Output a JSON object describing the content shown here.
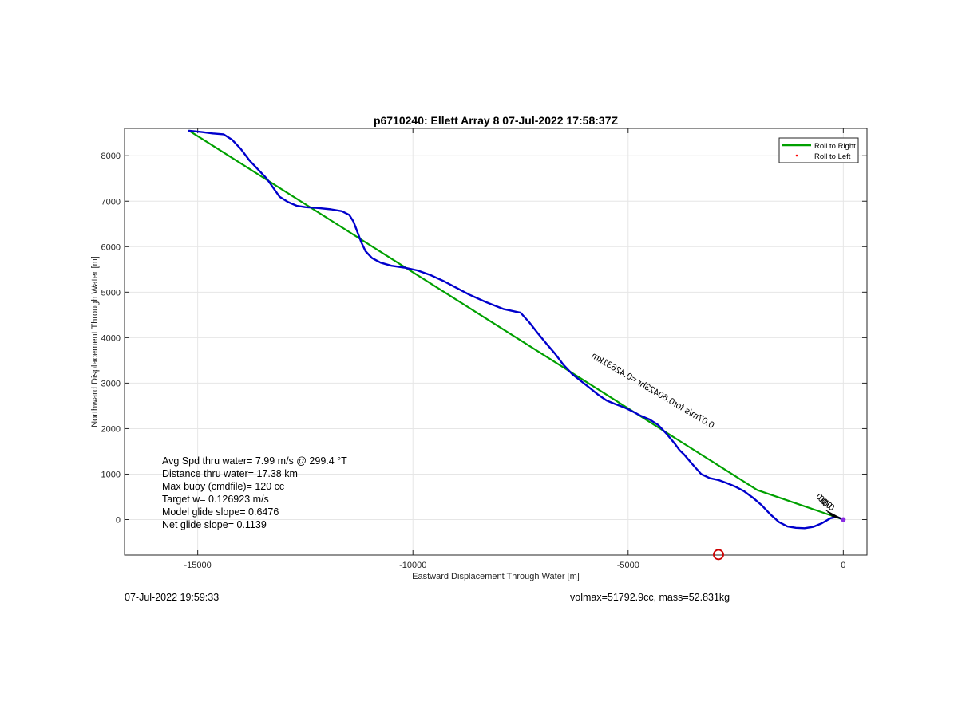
{
  "chart_data": {
    "type": "line",
    "title": "p6710240: Ellett Array 8 07-Jul-2022 17:58:37Z",
    "xlabel": "Eastward Displacement Through Water [m]",
    "ylabel": "Northward Displacement Through Water [m]",
    "xlim": [
      -16700,
      550
    ],
    "ylim": [
      -780,
      8600
    ],
    "xticks": [
      -15000,
      -10000,
      -5000,
      0
    ],
    "yticks": [
      0,
      1000,
      2000,
      3000,
      4000,
      5000,
      6000,
      7000,
      8000
    ],
    "grid": true,
    "legend_position": "top-right",
    "legend": [
      {
        "label": "Roll to Right",
        "color": "#00a000",
        "marker": "line"
      },
      {
        "label": "Roll to Left",
        "color": "#ff0000",
        "marker": "dot"
      }
    ],
    "series": [
      {
        "name": "Roll to Right",
        "color": "#00a000",
        "x": [
          -15200,
          -2000,
          0
        ],
        "y": [
          8550,
          650,
          0
        ]
      },
      {
        "color": "#0000cc",
        "x": [
          -15200,
          -14900,
          -14650,
          -14400,
          -14200,
          -14000,
          -13800,
          -13600,
          -13400,
          -13250,
          -13100,
          -12900,
          -12700,
          -12500,
          -12200,
          -11900,
          -11650,
          -11480,
          -11380,
          -11300,
          -11200,
          -11100,
          -10950,
          -10750,
          -10500,
          -10200,
          -9900,
          -9600,
          -9300,
          -9000,
          -8700,
          -8300,
          -7900,
          -7600,
          -7500,
          -7300,
          -7100,
          -6900,
          -6700,
          -6500,
          -6300,
          -6100,
          -5900,
          -5700,
          -5500,
          -5300,
          -5100,
          -4900,
          -4700,
          -4500,
          -4300,
          -4100,
          -3900,
          -3800,
          -3700,
          -3600,
          -3500,
          -3300,
          -3100,
          -2900,
          -2700,
          -2500,
          -2300,
          -2100,
          -1900,
          -1700,
          -1500,
          -1300,
          -1100,
          -900,
          -700,
          -500,
          -300,
          -150,
          0
        ],
        "y": [
          8550,
          8520,
          8490,
          8470,
          8350,
          8150,
          7900,
          7700,
          7500,
          7300,
          7100,
          6980,
          6900,
          6870,
          6850,
          6820,
          6780,
          6700,
          6550,
          6350,
          6100,
          5900,
          5750,
          5650,
          5580,
          5540,
          5480,
          5380,
          5250,
          5100,
          4950,
          4780,
          4630,
          4570,
          4550,
          4340,
          4100,
          3870,
          3650,
          3400,
          3200,
          3050,
          2900,
          2750,
          2620,
          2540,
          2470,
          2380,
          2280,
          2200,
          2080,
          1880,
          1650,
          1520,
          1430,
          1320,
          1210,
          1000,
          910,
          870,
          800,
          720,
          620,
          480,
          320,
          120,
          -50,
          -150,
          -180,
          -190,
          -160,
          -80,
          30,
          60,
          0
        ]
      }
    ],
    "annotations": {
      "left_box": [
        "Avg Spd thru water=  7.99 m/s @ 299.4 °T",
        "Distance thru water= 17.38 km",
        "Max buoy (cmdfile)= 120 cc",
        "Target w= 0.126923 m/s",
        "Model glide slope= 0.6476",
        "Net glide slope= 0.1139"
      ],
      "arrow_labels": [
        "0.07m/s for0.60423hr =0.42631km",
        "0.0",
        "0.0",
        "0.0",
        "0.0"
      ],
      "marker": {
        "label": "",
        "x": -2900,
        "y": -770,
        "color": "#cc0000"
      }
    }
  },
  "footer": {
    "left": "07-Jul-2022 19:59:33",
    "right": "volmax=51792.9cc, mass=52.831kg"
  }
}
